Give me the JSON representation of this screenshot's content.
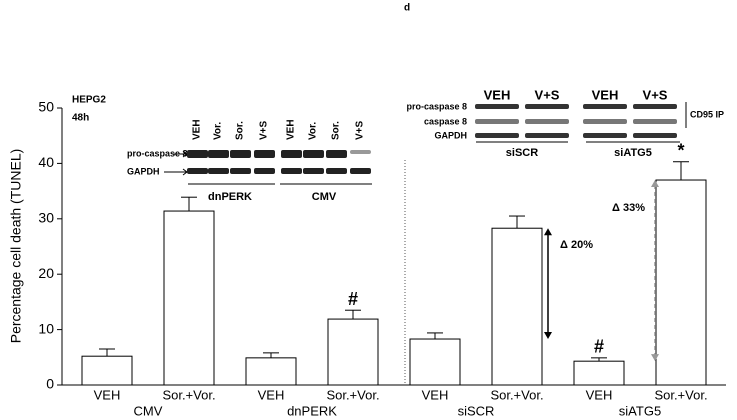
{
  "chart_data": {
    "type": "bar",
    "title": "d",
    "ylabel": "Percentage cell death (TUNEL)",
    "categories": [
      "VEH",
      "Sor.+Vor.",
      "VEH",
      "Sor.+Vor.",
      "VEH",
      "Sor.+Vor.",
      "VEH",
      "Sor.+Vor."
    ],
    "groups": [
      "CMV",
      "dnPERK",
      "siSCR",
      "siATG5"
    ],
    "values": [
      5.2,
      31.4,
      4.9,
      11.9,
      8.3,
      28.3,
      4.3,
      37.0
    ],
    "errors": [
      1.3,
      2.5,
      0.9,
      1.6,
      1.1,
      2.2,
      0.6,
      3.3
    ],
    "color": "#ffffff",
    "ylim": [
      0,
      50
    ],
    "yticks": [
      0,
      10,
      20,
      30,
      40,
      50
    ],
    "annotations": [
      "#",
      "#",
      "*",
      "Δ 20%",
      "Δ 33%"
    ],
    "insets": {
      "left": {
        "cell_line": "HEPG2",
        "time": "48h",
        "lanes": [
          "VEH",
          "Vor.",
          "Sor.",
          "V+S",
          "VEH",
          "Vor.",
          "Sor.",
          "V+S"
        ],
        "rows": [
          "pro-caspase 8",
          "GAPDH"
        ],
        "groups": [
          "dnPERK",
          "CMV"
        ]
      },
      "right": {
        "lanes": [
          "VEH",
          "V+S",
          "VEH",
          "V+S"
        ],
        "rows": [
          "pro-caspase 8",
          "caspase 8",
          "GAPDH"
        ],
        "groups": [
          "siSCR",
          "siATG5"
        ],
        "note": "CD95 IP"
      }
    }
  }
}
